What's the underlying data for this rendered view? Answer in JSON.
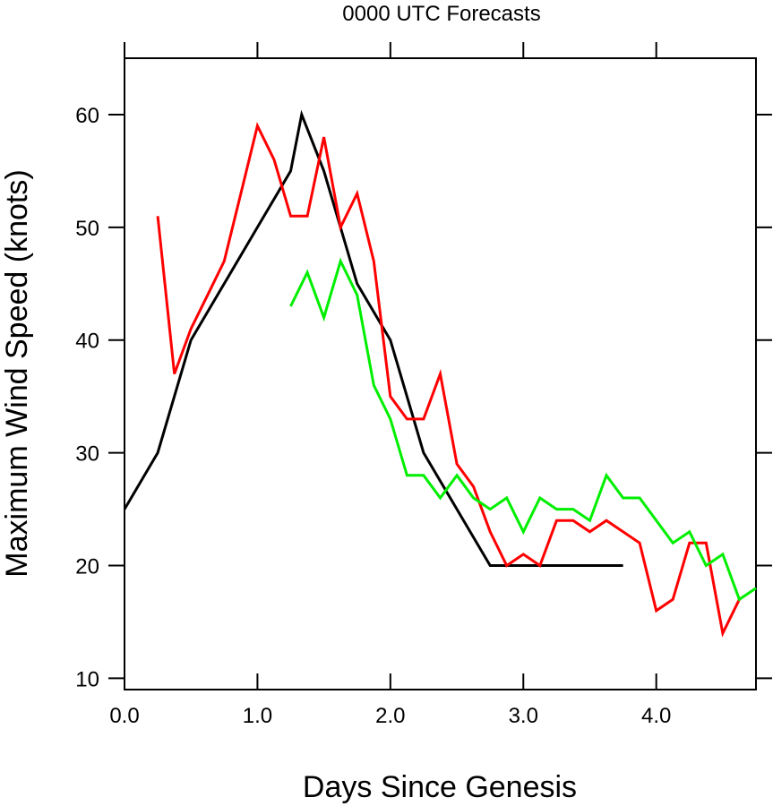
{
  "chart_data": {
    "type": "line",
    "title": "0000 UTC Forecasts",
    "xlabel": "Days Since Genesis",
    "ylabel": "Maximum Wind Speed (knots)",
    "xlim": [
      0.0,
      4.75
    ],
    "ylim": [
      9.0,
      65.0
    ],
    "x_ticks": [
      0.0,
      1.0,
      2.0,
      3.0,
      4.0
    ],
    "x_tick_labels": [
      "0.0",
      "1.0",
      "2.0",
      "3.0",
      "4.0"
    ],
    "y_ticks": [
      10,
      20,
      30,
      40,
      50,
      60
    ],
    "y_tick_labels": [
      "10",
      "20",
      "30",
      "40",
      "50",
      "60"
    ],
    "grid": false,
    "legend": "none",
    "series": [
      {
        "color": "#000000",
        "x": [
          0.0,
          0.25,
          0.5,
          0.75,
          1.0,
          1.25,
          1.333,
          1.5,
          1.75,
          2.0,
          2.25,
          2.5,
          2.75,
          3.0,
          3.25,
          3.5,
          3.75
        ],
        "y": [
          25,
          30,
          40,
          45,
          50,
          55,
          60,
          55,
          45,
          40,
          30,
          25,
          20,
          20,
          20,
          20,
          20
        ]
      },
      {
        "color": "#ff0000",
        "x": [
          0.25,
          0.375,
          0.5,
          0.625,
          0.75,
          0.875,
          1.0,
          1.125,
          1.25,
          1.375,
          1.5,
          1.625,
          1.75,
          1.875,
          2.0,
          2.125,
          2.25,
          2.375,
          2.5,
          2.625,
          2.75,
          2.875,
          3.0,
          3.125,
          3.25,
          3.375,
          3.5,
          3.625,
          3.75,
          3.875,
          4.0,
          4.125,
          4.25,
          4.375,
          4.5,
          4.625
        ],
        "y": [
          51,
          37,
          41,
          44,
          47,
          53,
          59,
          56,
          51,
          51,
          58,
          50,
          53,
          47,
          35,
          33,
          33,
          37,
          29,
          27,
          23,
          20,
          21,
          20,
          24,
          24,
          23,
          24,
          23,
          22,
          16,
          17,
          22,
          22,
          14,
          17
        ]
      },
      {
        "color": "#00ee00",
        "x": [
          1.25,
          1.375,
          1.5,
          1.625,
          1.75,
          1.875,
          2.0,
          2.125,
          2.25,
          2.375,
          2.5,
          2.625,
          2.75,
          2.875,
          3.0,
          3.125,
          3.25,
          3.375,
          3.5,
          3.625,
          3.75,
          3.875,
          4.0,
          4.125,
          4.25,
          4.375,
          4.5,
          4.625,
          4.75
        ],
        "y": [
          43,
          46,
          42,
          47,
          44,
          36,
          33,
          28,
          28,
          26,
          28,
          26,
          25,
          26,
          23,
          26,
          25,
          25,
          24,
          28,
          26,
          26,
          24,
          22,
          23,
          20,
          21,
          17,
          18
        ]
      }
    ]
  }
}
